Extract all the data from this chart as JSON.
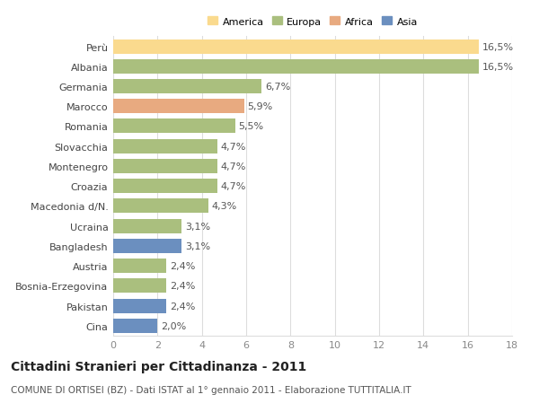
{
  "categories": [
    "Perù",
    "Albania",
    "Germania",
    "Marocco",
    "Romania",
    "Slovacchia",
    "Montenegro",
    "Croazia",
    "Macedonia d/N.",
    "Ucraina",
    "Bangladesh",
    "Austria",
    "Bosnia-Erzegovina",
    "Pakistan",
    "Cina"
  ],
  "values": [
    16.5,
    16.5,
    6.7,
    5.9,
    5.5,
    4.7,
    4.7,
    4.7,
    4.3,
    3.1,
    3.1,
    2.4,
    2.4,
    2.4,
    2.0
  ],
  "labels": [
    "16,5%",
    "16,5%",
    "6,7%",
    "5,9%",
    "5,5%",
    "4,7%",
    "4,7%",
    "4,7%",
    "4,3%",
    "3,1%",
    "3,1%",
    "2,4%",
    "2,4%",
    "2,4%",
    "2,0%"
  ],
  "colors": [
    "#FADA8E",
    "#AABF7E",
    "#AABF7E",
    "#E8AA80",
    "#AABF7E",
    "#AABF7E",
    "#AABF7E",
    "#AABF7E",
    "#AABF7E",
    "#AABF7E",
    "#6B8FBF",
    "#AABF7E",
    "#AABF7E",
    "#6B8FBF",
    "#6B8FBF"
  ],
  "legend_colors": [
    "#FADA8E",
    "#AABF7E",
    "#E8AA80",
    "#6B8FBF"
  ],
  "legend_labels": [
    "America",
    "Europa",
    "Africa",
    "Asia"
  ],
  "title": "Cittadini Stranieri per Cittadinanza - 2011",
  "subtitle": "COMUNE DI ORTISEI (BZ) - Dati ISTAT al 1° gennaio 2011 - Elaborazione TUTTITALIA.IT",
  "xlim": [
    0,
    18
  ],
  "xticks": [
    0,
    2,
    4,
    6,
    8,
    10,
    12,
    14,
    16,
    18
  ],
  "background_color": "#ffffff",
  "grid_color": "#dddddd",
  "bar_label_fontsize": 8,
  "ytick_fontsize": 8,
  "xtick_fontsize": 8,
  "title_fontsize": 10,
  "subtitle_fontsize": 7.5,
  "bar_height": 0.72
}
